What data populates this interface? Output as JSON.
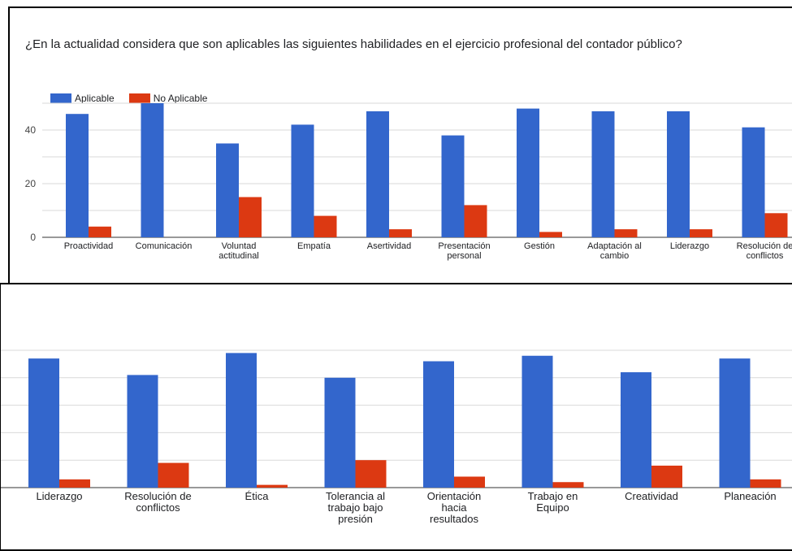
{
  "title": "¿En la actualidad considera que son aplicables las siguientes habilidades en el ejercicio profesional del contador público?",
  "colors": {
    "aplicable": "#3366cc",
    "no_aplicable": "#dc3912",
    "grid": "#d9d9d9",
    "axis": "#333333"
  },
  "legend": {
    "aplicable": "Aplicable",
    "no_aplicable": "No Aplicable",
    "position": "top-left"
  },
  "chart_data": [
    {
      "type": "bar",
      "ylim": [
        0,
        50
      ],
      "yticks": [
        "0",
        "20",
        "40"
      ],
      "grid": true,
      "categories": [
        [
          "Proactividad"
        ],
        [
          "Comunicación"
        ],
        [
          "Voluntad",
          "actitudinal"
        ],
        [
          "Empatía"
        ],
        [
          "Asertividad"
        ],
        [
          "Presentación",
          "personal"
        ],
        [
          "Gestión"
        ],
        [
          "Adaptación al",
          "cambio"
        ],
        [
          "Liderazgo"
        ],
        [
          "Resolución de",
          "conflictos"
        ]
      ],
      "series": [
        {
          "name": "Aplicable",
          "values": [
            46,
            50,
            35,
            42,
            47,
            38,
            48,
            47,
            47,
            41
          ]
        },
        {
          "name": "No Aplicable",
          "values": [
            4,
            0,
            15,
            8,
            3,
            12,
            2,
            3,
            3,
            9
          ]
        }
      ]
    },
    {
      "type": "bar",
      "ylim": [
        0,
        50
      ],
      "grid": true,
      "categories": [
        [
          "Liderazgo"
        ],
        [
          "Resolución de",
          "conflictos"
        ],
        [
          "Ética"
        ],
        [
          "Tolerancia al",
          "trabajo bajo",
          "presión"
        ],
        [
          "Orientación",
          "hacia",
          "resultados"
        ],
        [
          "Trabajo en",
          "Equipo"
        ],
        [
          "Creatividad"
        ],
        [
          "Planeación"
        ]
      ],
      "series": [
        {
          "name": "Aplicable",
          "values": [
            47,
            41,
            49,
            40,
            46,
            48,
            42,
            47
          ]
        },
        {
          "name": "No Aplicable",
          "values": [
            3,
            9,
            1,
            10,
            4,
            2,
            8,
            3
          ]
        }
      ]
    }
  ]
}
